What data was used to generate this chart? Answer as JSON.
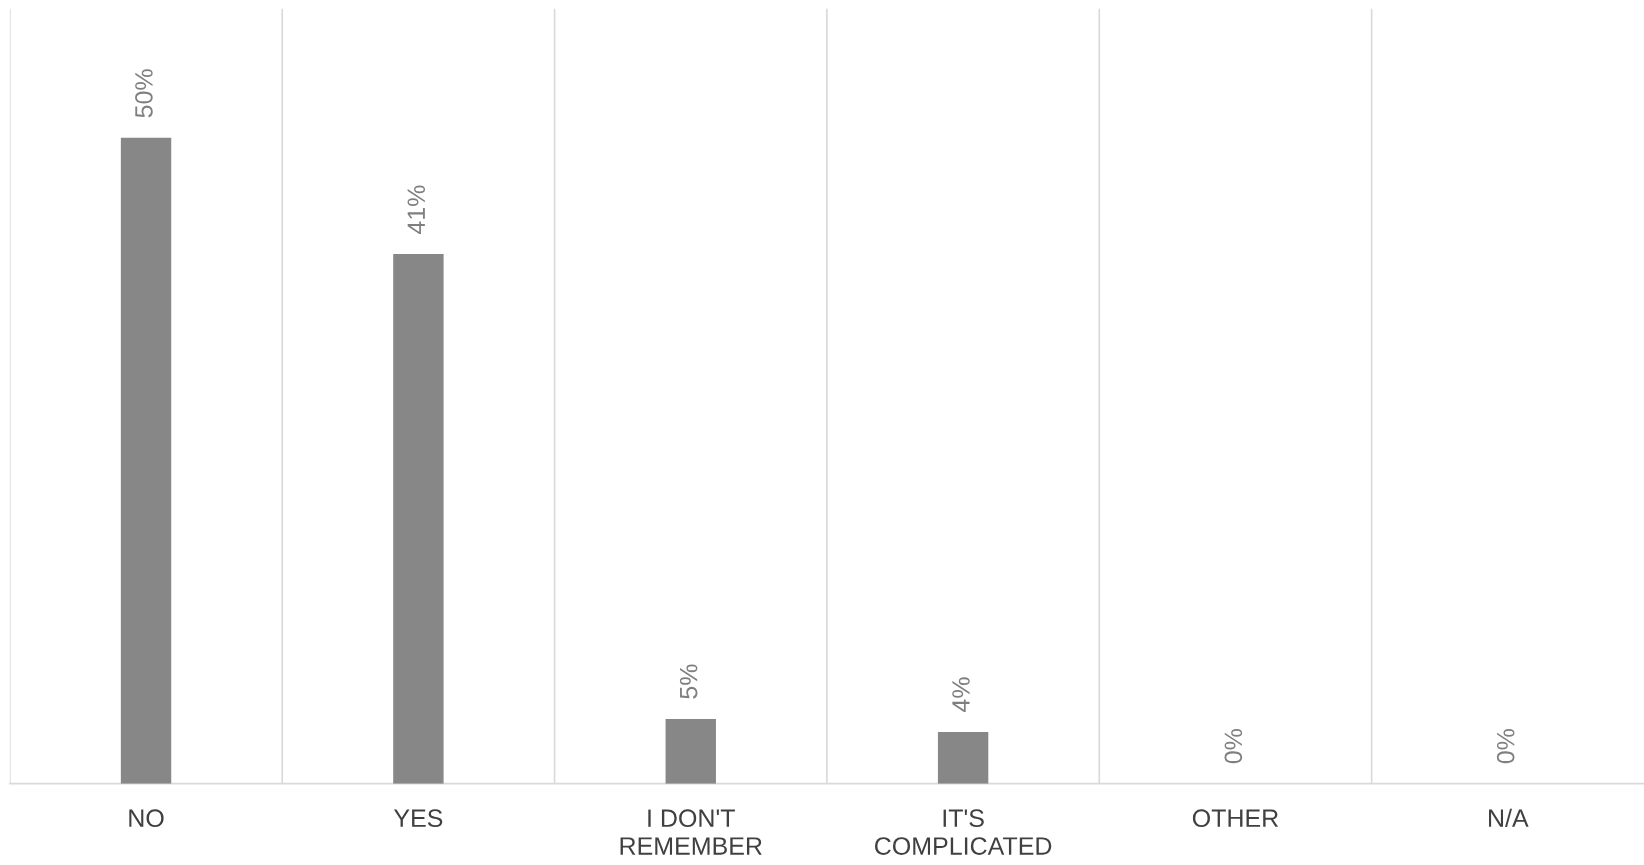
{
  "chart_data": {
    "type": "bar",
    "categories": [
      "NO",
      "YES",
      "I DON'T\nREMEMBER",
      "IT'S\nCOMPLICATED",
      "OTHER",
      "N/A"
    ],
    "values": [
      50,
      41,
      5,
      4,
      0,
      0
    ],
    "value_labels": [
      "50%",
      "41%",
      "5%",
      "4%",
      "0%",
      "0%"
    ],
    "color": "#878787",
    "grid": "x",
    "legend": false
  }
}
